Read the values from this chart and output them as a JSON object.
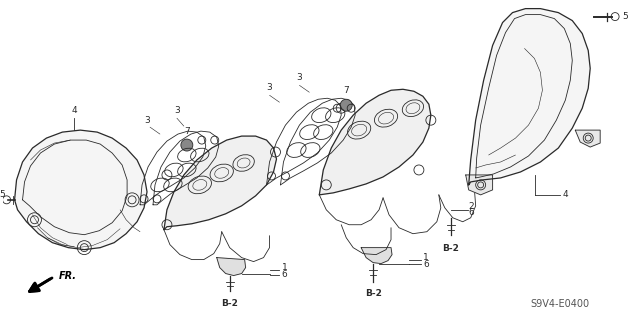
{
  "bg_color": "#ffffff",
  "line_color": "#2a2a2a",
  "part_code": "S9V4-E0400",
  "fig_width": 6.4,
  "fig_height": 3.19,
  "dpi": 100
}
